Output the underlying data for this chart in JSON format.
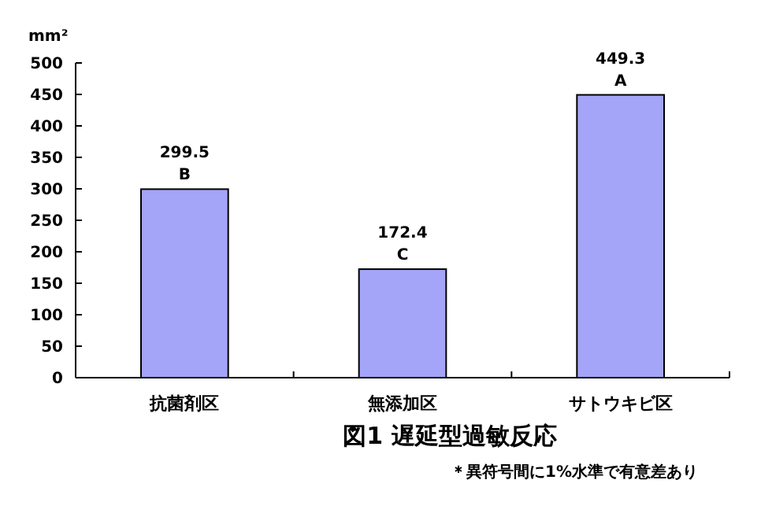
{
  "chart_data": {
    "type": "bar",
    "title": "図1 遅延型過敏反応",
    "ylabel": "mm²",
    "categories": [
      "抗菌剤区",
      "無添加区",
      "サトウキビ区"
    ],
    "values": [
      299.5,
      172.4,
      449.3
    ],
    "color": "#a4a4f8",
    "data_labels": true,
    "ylim": [
      0,
      500
    ],
    "yticks": [
      0,
      50,
      100,
      150,
      200,
      250,
      300,
      350,
      400,
      450,
      500
    ],
    "grid": false,
    "annotations": [
      {
        "text": "B",
        "x": "抗菌剤区",
        "y": 299.5
      },
      {
        "text": "C",
        "x": "無添加区",
        "y": 172.4
      },
      {
        "text": "A",
        "x": "サトウキビ区",
        "y": 449.3
      },
      "＊異符号間に1%水準で有意差あり"
    ]
  }
}
